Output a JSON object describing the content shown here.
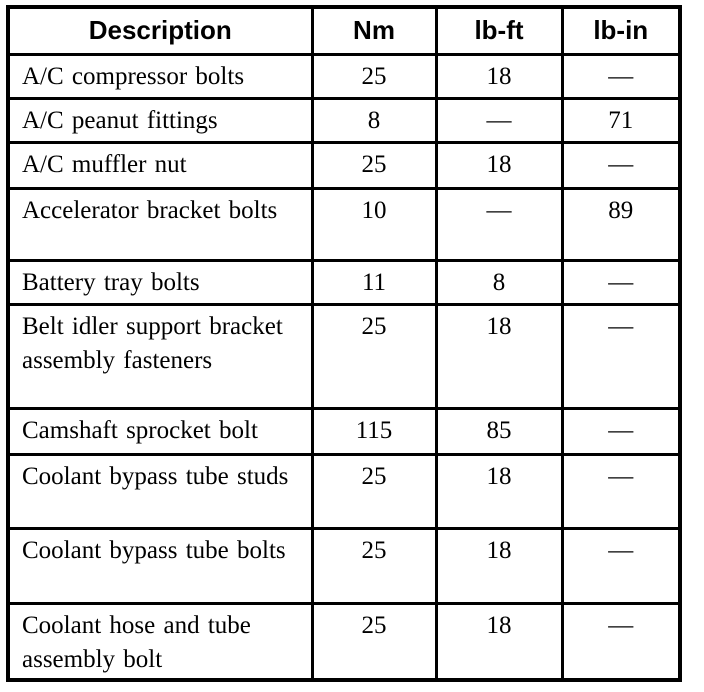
{
  "table": {
    "headers": {
      "description": "Description",
      "nm": "Nm",
      "lb_ft": "lb-ft",
      "lb_in": "lb-in"
    },
    "rows": [
      {
        "description": "A/C compressor bolts",
        "nm": "25",
        "lb_ft": "18",
        "lb_in": "—"
      },
      {
        "description": "A/C peanut fittings",
        "nm": "8",
        "lb_ft": "—",
        "lb_in": "71"
      },
      {
        "description": "A/C muffler nut",
        "nm": "25",
        "lb_ft": "18",
        "lb_in": "—"
      },
      {
        "description": "Accelerator bracket bolts",
        "nm": "10",
        "lb_ft": "—",
        "lb_in": "89"
      },
      {
        "description": "Battery tray bolts",
        "nm": "11",
        "lb_ft": "8",
        "lb_in": "—"
      },
      {
        "description": "Belt idler support bracket assembly fasteners",
        "nm": "25",
        "lb_ft": "18",
        "lb_in": "—"
      },
      {
        "description": "Camshaft sprocket bolt",
        "nm": "115",
        "lb_ft": "85",
        "lb_in": "—"
      },
      {
        "description": "Coolant bypass tube studs",
        "nm": "25",
        "lb_ft": "18",
        "lb_in": "—"
      },
      {
        "description": "Coolant bypass tube bolts",
        "nm": "25",
        "lb_ft": "18",
        "lb_in": "—"
      },
      {
        "description": "Coolant hose and tube assembly bolt",
        "nm": "25",
        "lb_ft": "18",
        "lb_in": "—"
      }
    ]
  },
  "colors": {
    "border": "#000000",
    "background": "#ffffff",
    "text": "#000000"
  }
}
